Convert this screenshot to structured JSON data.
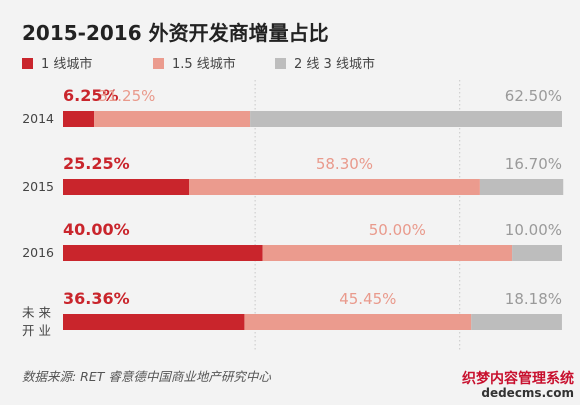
{
  "chart_data": {
    "type": "bar",
    "orientation": "horizontal",
    "stacked": true,
    "percent": true,
    "title": "2015-2016 外资开发商增量占比",
    "categories": [
      "2014",
      "2015",
      "2016",
      "未来开业"
    ],
    "category_display": [
      [
        "2014"
      ],
      [
        "2015"
      ],
      [
        "2016"
      ],
      [
        "未 来",
        "开 业"
      ]
    ],
    "series": [
      {
        "name": "1 线城市",
        "color": "#c9252c",
        "label_color": "#c9252c",
        "values": [
          6.25,
          25.25,
          40.0,
          36.36
        ],
        "labels": [
          "6.25%",
          "25.25%",
          "40.00%",
          "36.36%"
        ]
      },
      {
        "name": "1.5 线城市",
        "color": "#eb9b8e",
        "label_color": "#e99a8c",
        "values": [
          31.25,
          58.3,
          50.0,
          45.45
        ],
        "labels": [
          "31.25%",
          "58.30%",
          "50.00%",
          "45.45%"
        ]
      },
      {
        "name": "2 线 3 线城市",
        "color": "#bdbdbd",
        "label_color": "#9a9a9a",
        "values": [
          62.5,
          16.7,
          10.0,
          18.18
        ],
        "labels": [
          "62.50%",
          "16.70%",
          "10.00%",
          "18.18%"
        ]
      }
    ],
    "xlim": [
      0,
      100
    ],
    "legend_position": "top",
    "grid": "dotted vertical"
  },
  "source": "数据来源: RET 睿意德中国商业地产研究中心",
  "watermark": {
    "line1": "织梦内容管理系统",
    "line2": "dedecms.com"
  },
  "colors": {
    "background": "#f3f3f3",
    "title": "#222222",
    "grid": "#c8c8c8"
  }
}
